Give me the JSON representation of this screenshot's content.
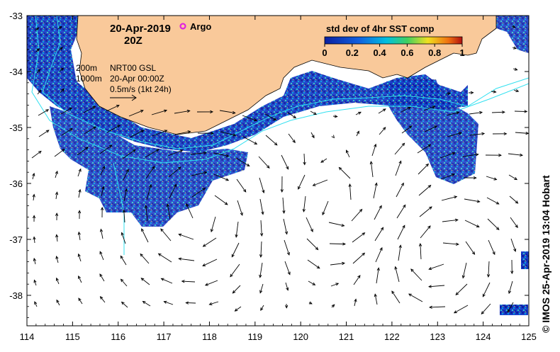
{
  "map": {
    "title_date": "20-Apr-2019",
    "title_time": "20Z",
    "argo_label": "Argo",
    "depth_200": "200m",
    "depth_1000": "1000m",
    "product": "NRT00 GSL",
    "product_time": "20-Apr 00:00Z",
    "scale_label": "0.5m/s (1kt 24h)",
    "colorbar_title": "std dev of 4hr SST comp",
    "colorbar_ticks": [
      "0",
      "0.2",
      "0.4",
      "0.6",
      "0.8",
      "1"
    ],
    "x_ticks": [
      "114",
      "115",
      "116",
      "117",
      "118",
      "119",
      "120",
      "121",
      "122",
      "123",
      "124",
      "125"
    ],
    "y_ticks": [
      "-33",
      "-34",
      "-35",
      "-36",
      "-37",
      "-38"
    ],
    "credit": "© IMOS 25-Apr-2019 13:04 Hobart"
  },
  "colors": {
    "land": "#f9c99a",
    "low_sd": "#0a1fa0",
    "mid_sd": "#00a8d8",
    "high_sd": "#e8e020",
    "contour": "#30e0f0",
    "argo": "#e020e0"
  }
}
